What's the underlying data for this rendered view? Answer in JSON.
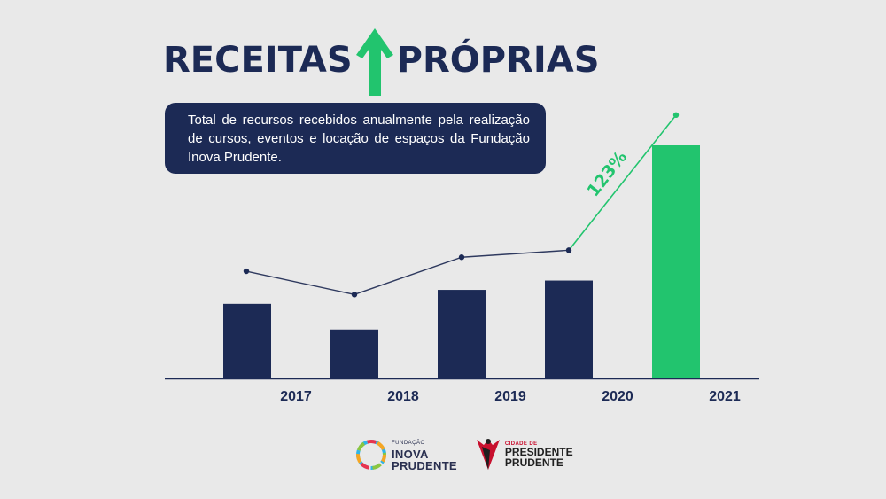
{
  "header": {
    "title_left": "RECEITAS",
    "title_right": "PRÓPRIAS",
    "description": "Total de recursos recebidos anualmente pela realização de cursos, eventos e locação de espaços da Fundação Inova Prudente."
  },
  "chart_data": {
    "type": "bar",
    "categories": [
      "2017",
      "2018",
      "2019",
      "2020",
      "2021"
    ],
    "values": [
      32,
      21,
      38,
      42,
      100
    ],
    "trend_values": [
      46,
      36,
      52,
      55,
      113
    ],
    "annotation": "123%",
    "grid": false,
    "colors": {
      "bar": "#1c2a55",
      "highlight_bar": "#22c46e",
      "line": "#2f3a5f",
      "growth_line": "#22c46e"
    }
  },
  "footer": {
    "logo_inova": {
      "small": "FUNDAÇÃO",
      "line1": "INOVA",
      "line2": "PRUDENTE"
    },
    "logo_city": {
      "small": "CIDADE DE",
      "line1": "PRESIDENTE",
      "line2": "PRUDENTE"
    }
  }
}
